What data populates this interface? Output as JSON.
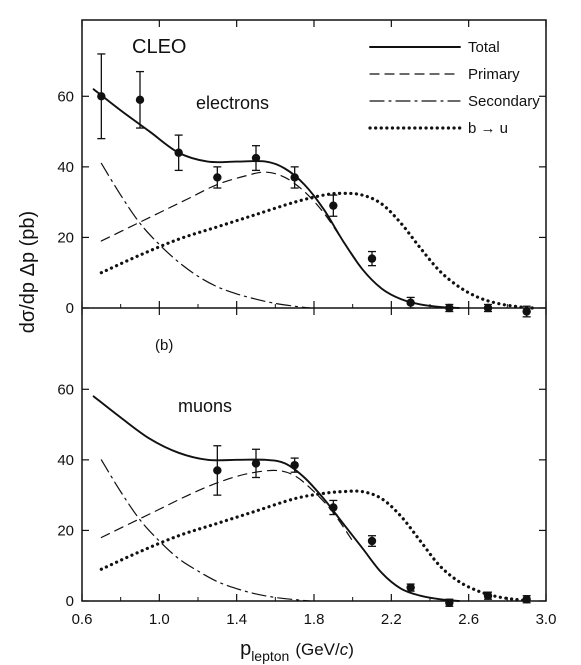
{
  "chart_data": {
    "type": "line",
    "experiment_label": "CLEO",
    "ylabel": "dσ/dp Δp (pb)",
    "xlabel": {
      "main": "p",
      "sub": "lepton",
      "units_open": "(GeV/",
      "units_var": "c",
      "units_close": ")"
    },
    "xlim": [
      0.6,
      3.0
    ],
    "x_ticks": [
      0.6,
      1.0,
      1.4,
      1.8,
      2.2,
      2.6,
      3.0
    ],
    "x_tick_labels": [
      "0.6",
      "1.0",
      "1.4",
      "1.8",
      "2.2",
      "2.6",
      "3.0"
    ],
    "ylim": [
      0,
      70
    ],
    "y_ticks": [
      0,
      20,
      40,
      60
    ],
    "y_tick_labels": [
      "0",
      "20",
      "40",
      "60"
    ],
    "grid": false,
    "legend": {
      "placement": "top-right",
      "entries": [
        {
          "label": "Total",
          "style": "solid"
        },
        {
          "label": "Primary",
          "style": "dashed"
        },
        {
          "label": "Secondary",
          "style": "dashdot"
        },
        {
          "label": "b → u",
          "style": "dotted"
        }
      ]
    },
    "panels": [
      {
        "label": "electrons",
        "sub_label": "",
        "points": [
          {
            "x": 0.7,
            "y": 60,
            "err": 12
          },
          {
            "x": 0.9,
            "y": 59,
            "err": 8
          },
          {
            "x": 1.1,
            "y": 44,
            "err": 5
          },
          {
            "x": 1.3,
            "y": 37,
            "err": 3
          },
          {
            "x": 1.5,
            "y": 42.5,
            "err": 3.5
          },
          {
            "x": 1.7,
            "y": 37,
            "err": 3
          },
          {
            "x": 1.9,
            "y": 29,
            "err": 3
          },
          {
            "x": 2.1,
            "y": 14,
            "err": 2
          },
          {
            "x": 2.3,
            "y": 1.5,
            "err": 1.5
          },
          {
            "x": 2.5,
            "y": 0,
            "err": 1
          },
          {
            "x": 2.7,
            "y": 0,
            "err": 1
          },
          {
            "x": 2.9,
            "y": -1,
            "err": 1.5
          }
        ],
        "series": [
          {
            "name": "Total",
            "style": "solid",
            "x": [
              0.66,
              0.8,
              0.95,
              1.1,
              1.25,
              1.4,
              1.55,
              1.65,
              1.75,
              1.85,
              1.95,
              2.05,
              2.15,
              2.25,
              2.35,
              2.45,
              2.55
            ],
            "y": [
              62,
              56,
              50,
              44,
              41.5,
              41.5,
              41.5,
              39.5,
              35,
              28,
              19,
              11,
              5.5,
              2.5,
              1,
              0.3,
              0
            ]
          },
          {
            "name": "Primary",
            "style": "dashed",
            "x": [
              0.7,
              0.85,
              1.0,
              1.15,
              1.3,
              1.45,
              1.55,
              1.65,
              1.75,
              1.85,
              1.95,
              2.05
            ],
            "y": [
              19,
              23,
              27,
              31,
              35,
              37.5,
              38.5,
              37,
              33,
              27,
              19,
              11
            ]
          },
          {
            "name": "Secondary",
            "style": "dashdot",
            "x": [
              0.7,
              0.8,
              0.9,
              1.0,
              1.1,
              1.2,
              1.3,
              1.4,
              1.5,
              1.6,
              1.7,
              1.78
            ],
            "y": [
              41,
              32,
              24,
              18,
              13,
              9,
              6,
              4,
              2.5,
              1.3,
              0.5,
              0
            ]
          },
          {
            "name": "b → u",
            "style": "dotted",
            "x": [
              0.7,
              0.9,
              1.1,
              1.3,
              1.5,
              1.7,
              1.85,
              1.95,
              2.05,
              2.15,
              2.25,
              2.35,
              2.45,
              2.55,
              2.65,
              2.75,
              2.85,
              2.93
            ],
            "y": [
              10,
              15,
              19.5,
              23,
              26.5,
              30,
              32,
              32.5,
              32,
              29.5,
              24,
              17,
              10.5,
              6,
              3,
              1.3,
              0.4,
              0
            ]
          }
        ]
      },
      {
        "label": "muons",
        "sub_label": "(b)",
        "points": [
          {
            "x": 1.3,
            "y": 37,
            "err": 7
          },
          {
            "x": 1.5,
            "y": 39,
            "err": 4
          },
          {
            "x": 1.7,
            "y": 38.5,
            "err": 2
          },
          {
            "x": 1.9,
            "y": 26.5,
            "err": 2
          },
          {
            "x": 2.1,
            "y": 17,
            "err": 1.5
          },
          {
            "x": 2.3,
            "y": 3.8,
            "err": 1
          },
          {
            "x": 2.5,
            "y": -0.5,
            "err": 1
          },
          {
            "x": 2.7,
            "y": 1.5,
            "err": 1
          },
          {
            "x": 2.9,
            "y": 0.5,
            "err": 1
          }
        ],
        "series": [
          {
            "name": "Total",
            "style": "solid",
            "x": [
              0.66,
              0.8,
              0.95,
              1.1,
              1.25,
              1.4,
              1.55,
              1.65,
              1.75,
              1.85,
              1.95,
              2.05,
              2.15,
              2.25,
              2.35,
              2.45,
              2.55
            ],
            "y": [
              58,
              52,
              46,
              42,
              40,
              40,
              40,
              39,
              35,
              29,
              22,
              15,
              8,
              3.5,
              1.5,
              0.5,
              0
            ]
          },
          {
            "name": "Primary",
            "style": "dashed",
            "x": [
              0.7,
              0.85,
              1.0,
              1.15,
              1.3,
              1.45,
              1.6,
              1.7,
              1.8,
              1.9,
              2.0
            ],
            "y": [
              18,
              22,
              26,
              30,
              33.5,
              36,
              37,
              35.5,
              31,
              25,
              17
            ]
          },
          {
            "name": "Secondary",
            "style": "dashdot",
            "x": [
              0.7,
              0.8,
              0.9,
              1.0,
              1.1,
              1.2,
              1.3,
              1.4,
              1.5,
              1.6,
              1.7,
              1.78
            ],
            "y": [
              40,
              31,
              23,
              17,
              12,
              8.5,
              5.5,
              3.5,
              2,
              1,
              0.4,
              0
            ]
          },
          {
            "name": "b → u",
            "style": "dotted",
            "x": [
              0.7,
              0.9,
              1.1,
              1.3,
              1.5,
              1.7,
              1.85,
              1.95,
              2.05,
              2.15,
              2.25,
              2.35,
              2.45,
              2.55,
              2.65,
              2.75,
              2.85,
              2.93
            ],
            "y": [
              9,
              14,
              18.5,
              22,
              25.5,
              29,
              30.5,
              31,
              31,
              29,
              24,
              17,
              10,
              5.5,
              2.8,
              1.2,
              0.4,
              0
            ]
          }
        ]
      }
    ]
  }
}
